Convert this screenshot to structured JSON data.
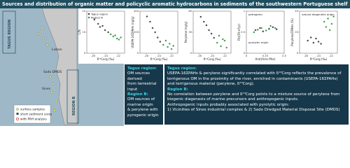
{
  "header": {
    "title": "Sources and distribution of organic matter and policyclic aromatic hydrocarbons in sediments of the southwestern Portuguese shelf"
  },
  "map": {
    "tagus": "TAGUS REGION",
    "region_b": "REGION B",
    "lisbon": "Lisbon",
    "sines": "Sines",
    "sado": "Sado DMDS",
    "legend": [
      "surface samples",
      "short sediment cores",
      "with PAH analysis"
    ]
  },
  "plots": [
    {
      "xlabel": "δ¹³Corg (‰)",
      "ylabel": "C/N",
      "xlim": [
        -27,
        -21
      ],
      "ylim": [
        0,
        20
      ],
      "xticks": [
        -26,
        -24,
        -22
      ],
      "yticks": [
        0,
        10,
        20
      ],
      "series": [
        {
          "name": "Tagus region",
          "color": "#444444",
          "x": [
            -25.8,
            -25.2,
            -24.9,
            -24.5,
            -24.1,
            -23.6
          ],
          "y": [
            16,
            14,
            12.5,
            13,
            11,
            10
          ]
        },
        {
          "name": "Region B",
          "color": "#3a9a4a",
          "x": [
            -23.2,
            -22.8,
            -22.5,
            -22.2,
            -21.9,
            -21.6
          ],
          "y": [
            9,
            8,
            8.5,
            7,
            6.5,
            7.5
          ]
        }
      ]
    },
    {
      "xlabel": "δ¹³Corg (‰)",
      "ylabel": "USEPA-16ΣPAHs (ng/g)",
      "xlim": [
        -27,
        -21
      ],
      "ylim": [
        0,
        400
      ],
      "xticks": [
        -26,
        -24,
        -22
      ],
      "yticks": [
        0,
        200,
        400
      ],
      "series": [
        {
          "name": "Tagus region",
          "color": "#444444",
          "x": [
            -25.9,
            -25.4,
            -25,
            -24.6,
            -24.2,
            -23.8
          ],
          "y": [
            350,
            300,
            240,
            200,
            150,
            110
          ]
        },
        {
          "name": "Region B",
          "color": "#3a9a4a",
          "x": [
            -23.3,
            -22.9,
            -22.6,
            -22.3,
            -22,
            -21.7
          ],
          "y": [
            80,
            120,
            60,
            90,
            40,
            70
          ]
        }
      ]
    },
    {
      "xlabel": "δ¹³Corg (‰)",
      "ylabel": "Perylene (ng/g)",
      "xlim": [
        -27,
        -21
      ],
      "ylim": [
        0,
        60
      ],
      "xticks": [
        -26,
        -24,
        -22
      ],
      "yticks": [
        0,
        30,
        60
      ],
      "series": [
        {
          "name": "Tagus region",
          "color": "#444444",
          "x": [
            -25.8,
            -25.3,
            -24.9,
            -24.5,
            -24.1,
            -23.7
          ],
          "y": [
            52,
            45,
            40,
            33,
            28,
            22
          ]
        },
        {
          "name": "Region B",
          "color": "#3a9a4a",
          "x": [
            -23.2,
            -22.9,
            -22.6,
            -22.3,
            -22,
            -21.7
          ],
          "y": [
            15,
            25,
            10,
            20,
            18,
            8
          ]
        }
      ]
    },
    {
      "xlabel": "Ant/(Ant+Phe)",
      "ylabel": "Flt/(Flt+Pyr)",
      "xlim": [
        0,
        0.5
      ],
      "ylim": [
        0,
        1
      ],
      "xticks": [
        0,
        0.25,
        0.5
      ],
      "yticks": [
        0,
        0.5,
        1
      ],
      "annotations": [
        "petrogenic",
        "pyrolytic origin"
      ],
      "series": [
        {
          "name": "Tagus region",
          "color": "#444444",
          "x": [
            0.12,
            0.18,
            0.22,
            0.3,
            0.35,
            0.4
          ],
          "y": [
            0.55,
            0.6,
            0.52,
            0.58,
            0.62,
            0.57
          ]
        },
        {
          "name": "Region B",
          "color": "#3a9a4a",
          "x": [
            0.1,
            0.15,
            0.2,
            0.26,
            0.32,
            0.38
          ],
          "y": [
            0.5,
            0.56,
            0.6,
            0.54,
            0.65,
            0.6
          ]
        }
      ]
    },
    {
      "xlabel": "δ¹³Corg (‰)",
      "ylabel": "Perylene/ΣPAHs (%)",
      "xlim": [
        -27,
        -21
      ],
      "ylim": [
        0,
        40
      ],
      "xticks": [
        -26,
        -24,
        -22
      ],
      "yticks": [
        0,
        20,
        40
      ],
      "annotations": [
        "natural diagenetic origin"
      ],
      "series": [
        {
          "name": "Tagus region",
          "color": "#444444",
          "x": [
            -25.7,
            -25.2,
            -24.8,
            -24.4,
            -24,
            -23.6
          ],
          "y": [
            12,
            15,
            10,
            14,
            11,
            9
          ]
        },
        {
          "name": "Region B",
          "color": "#3a9a4a",
          "x": [
            -23.1,
            -22.8,
            -22.5,
            -22.2,
            -21.9,
            -21.6
          ],
          "y": [
            30,
            25,
            33,
            22,
            28,
            35
          ]
        }
      ]
    }
  ],
  "left_box": {
    "tagus_head": "Tagus region:",
    "tagus": [
      "OM sources derived",
      "from terrestrial input"
    ],
    "b_head": "Region B:",
    "b": [
      "OM sources of",
      "marine origin",
      "& perylene with",
      "pyrogenic origin"
    ]
  },
  "right_box": {
    "tagus_head": "Tagus region:",
    "tagus": [
      "USEPA-16ΣPAHs & perylene significantly correlated with δ¹³Corg reflects the prevalence of",
      "terrigenous OM in the proximity of the river, enriched in contaminants (USEPA-16ΣPAHs)",
      "and terrigenous material (perylene, δ¹³Corg)."
    ],
    "b_head": "Region B:",
    "b": [
      "No correlation between perylene and δ¹³Corg points to a mixture source of perylene from",
      "biogenic diagenesis of marine precursors and anthropogenic inputs.",
      "Anthropogenic inputs probably associated with pyrolytic origin:",
      "1) Vicinities of Sines industrial complex & 2) Sado Dredged Material Disposal Site (DMDS)"
    ]
  }
}
